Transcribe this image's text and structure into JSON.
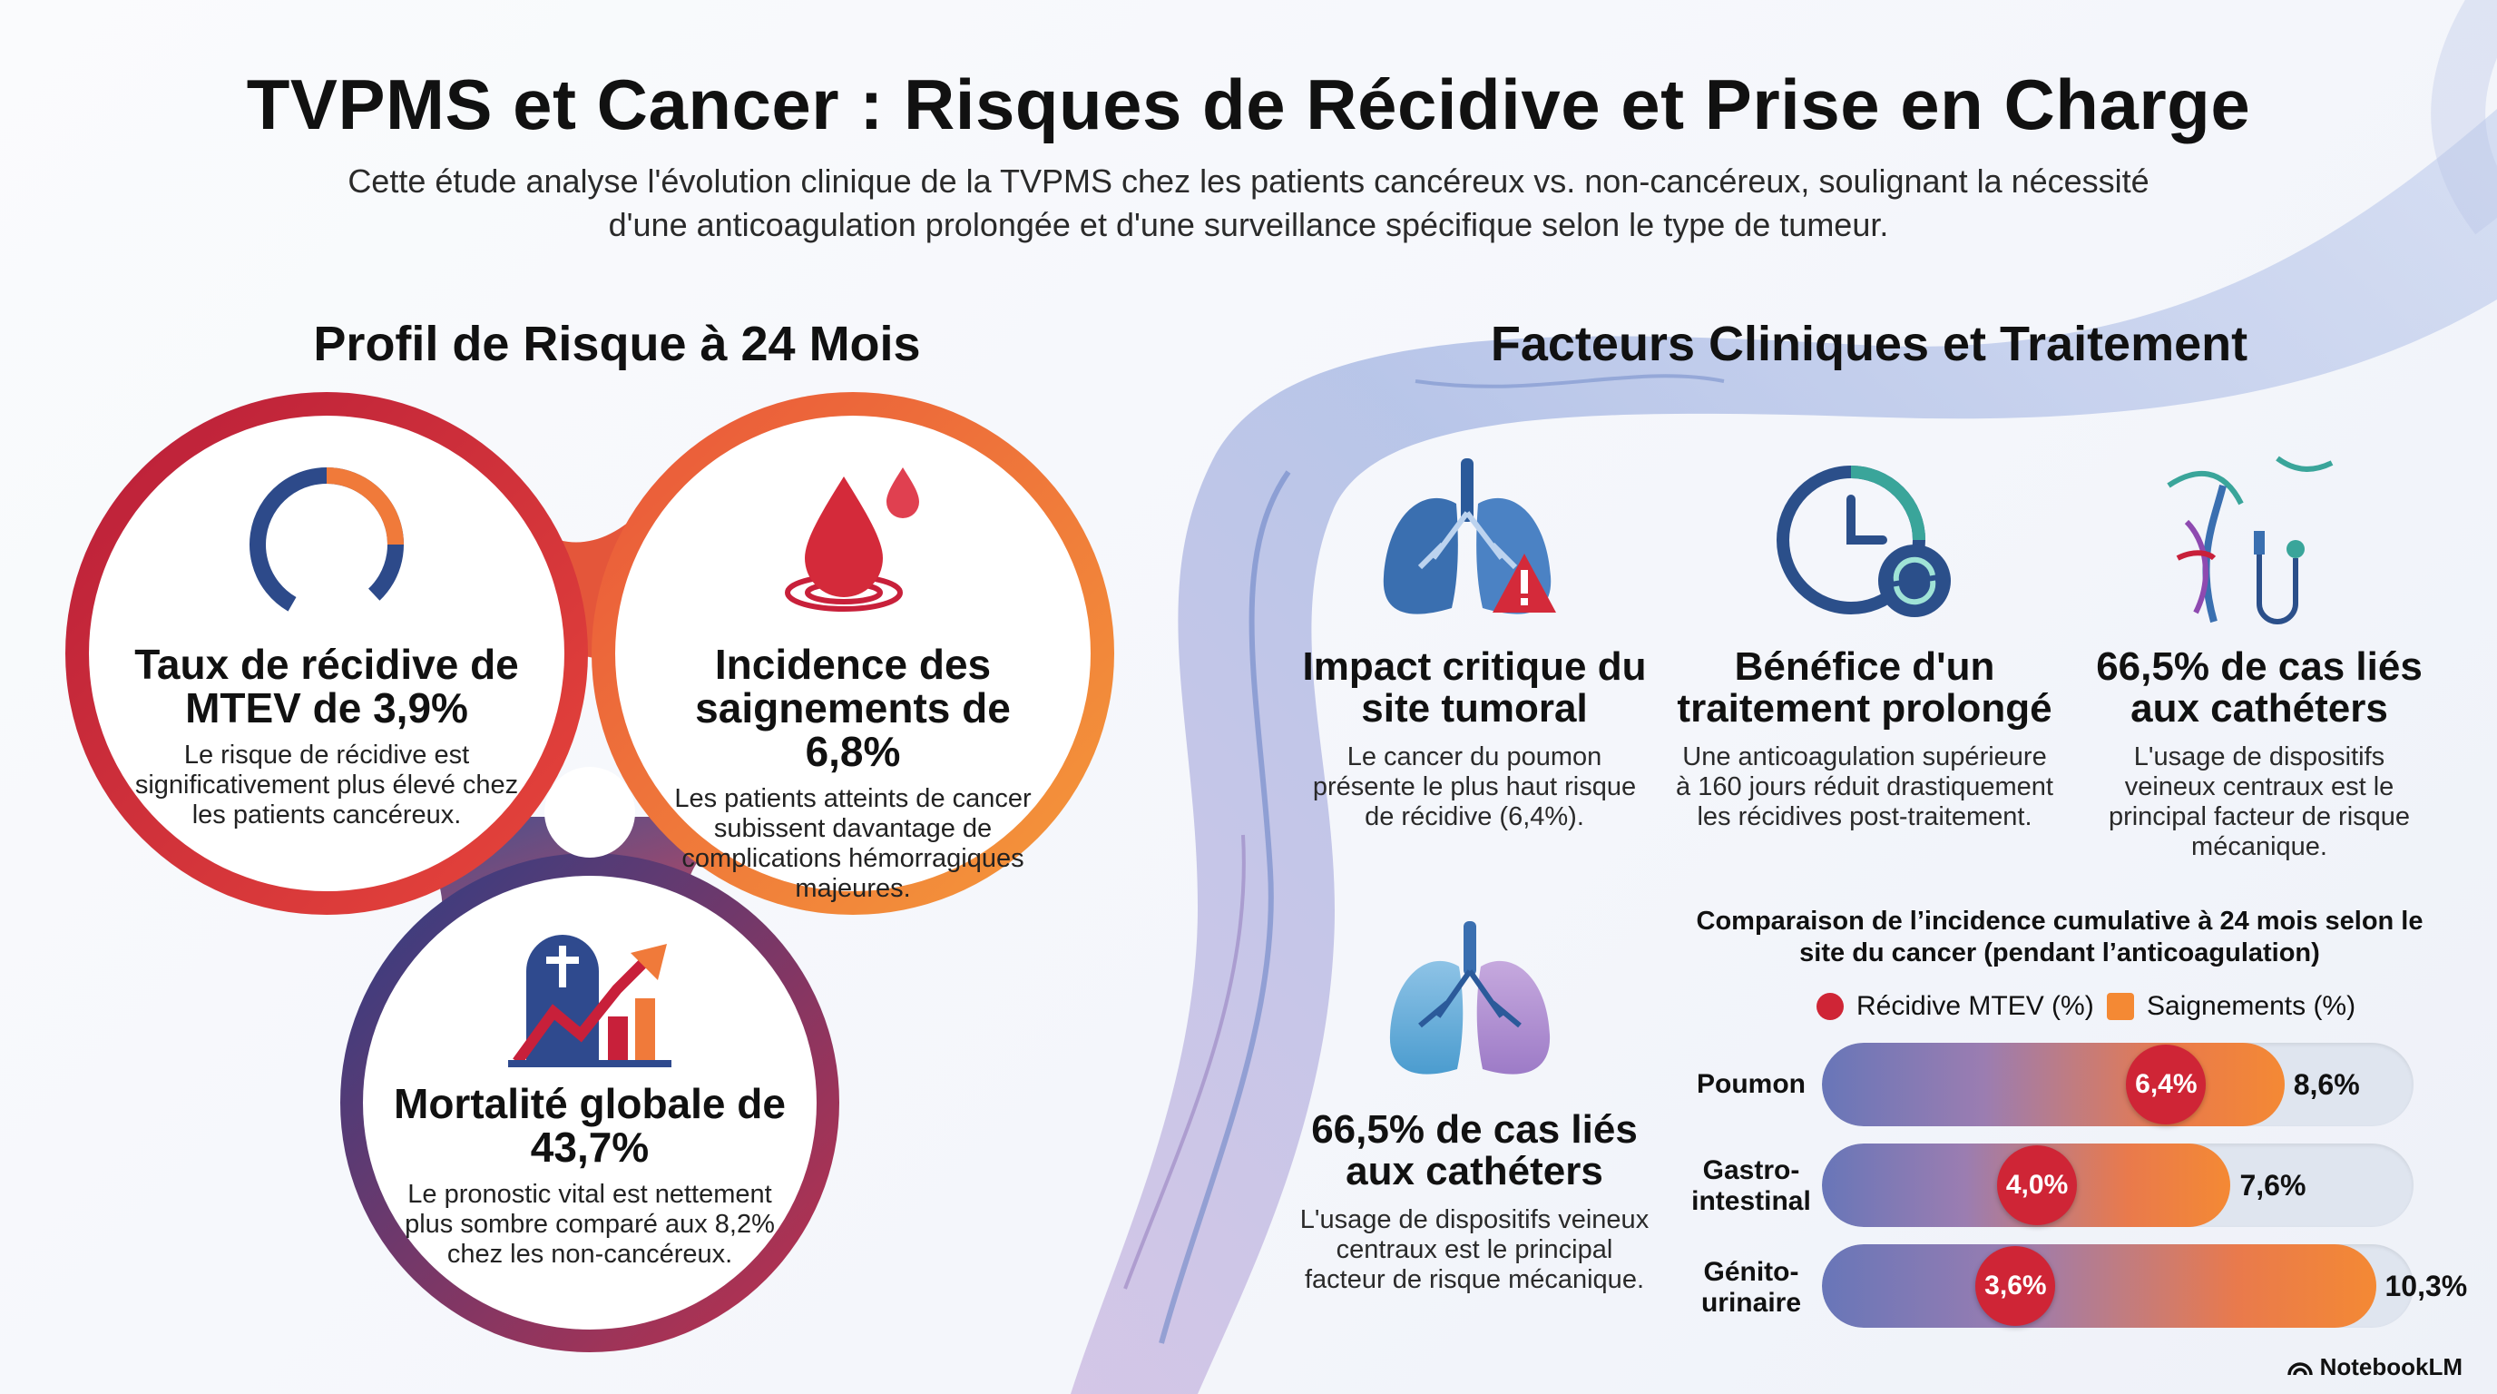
{
  "title": "TVPMS et Cancer : Risques de Récidive et Prise en Charge",
  "subtitle": "Cette étude analyse l'évolution clinique de la TVPMS chez les patients cancéreux vs. non-cancéreux, soulignant la nécessité d'une anticoagulation prolongée et d'une surveillance spécifique selon le type de tumeur.",
  "left_section": {
    "title": "Profil de Risque à 24 Mois",
    "circles": [
      {
        "icon": "partial-ring-icon",
        "heading": "Taux de récidive de MTEV de 3,9%",
        "text": "Le risque de récidive est significativement plus élevé chez les patients cancéreux.",
        "ring_color": "#c8203a"
      },
      {
        "icon": "blood-drop-icon",
        "heading": "Incidence des saignements de 6,8%",
        "text": "Les patients atteints de cancer subissent davantage de complications hémorragiques majeures.",
        "ring_color": "#f28a35"
      },
      {
        "icon": "tombstone-trend-icon",
        "heading": "Mortalité globale de 43,7%",
        "text": "Le pronostic vital est nettement plus sombre comparé aux 8,2% chez les non-cancéreux.",
        "ring_color": "#2f4a8e"
      }
    ]
  },
  "right_section": {
    "title": "Facteurs Cliniques et Traitement",
    "columns": [
      {
        "icon": "lungs-warning-icon",
        "heading": "Impact critique du site tumoral",
        "text": "Le cancer du poumon présente le plus haut risque de récidive (6,4%)."
      },
      {
        "icon": "clock-refresh-icon",
        "heading": "Bénéfice d'un traitement prolongé",
        "text": "Une anticoagulation supérieure à 160 jours réduit drastiquement les récidives post-traitement."
      },
      {
        "icon": "catheter-icon",
        "heading": "66,5% de cas liés aux cathéters",
        "text": "L'usage de dispositifs veineux centraux est le principal facteur de risque mécanique."
      },
      {
        "icon": "lungs-icon",
        "heading": "66,5% de cas liés aux cathéters",
        "text": "L'usage de dispositifs veineux centraux est le principal facteur de risque mécanique."
      }
    ]
  },
  "chart_data": {
    "type": "bar",
    "title": "Comparaison de l’incidence cumulative à 24 mois selon le site du cancer (pendant l’anticoagulation)",
    "legend": [
      {
        "name": "Récidive MTEV (%)",
        "color": "#cf2536"
      },
      {
        "name": "Saignements (%)",
        "color": "#f48934"
      }
    ],
    "categories": [
      "Poumon",
      "Gastro-intestinal",
      "Génito-urinaire"
    ],
    "series": [
      {
        "name": "Récidive MTEV (%)",
        "values": [
          6.4,
          4.0,
          3.6
        ],
        "labels": [
          "6,4%",
          "4,0%",
          "3,6%"
        ]
      },
      {
        "name": "Saignements (%)",
        "values": [
          8.6,
          7.6,
          10.3
        ],
        "labels": [
          "8,6%",
          "7,6%",
          "10,3%"
        ]
      }
    ]
  },
  "footer": {
    "brand": "NotebookLM"
  }
}
